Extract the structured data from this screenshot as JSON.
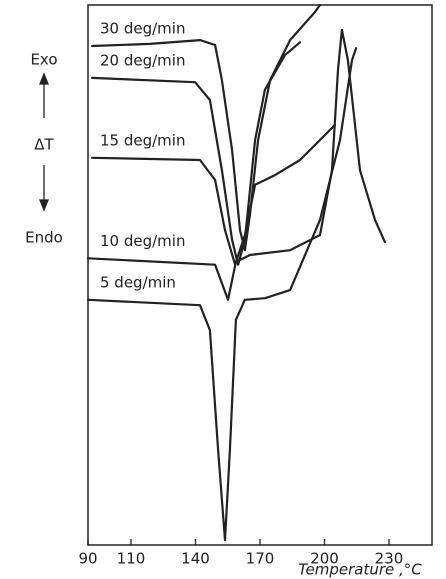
{
  "chart_data": {
    "type": "line",
    "xlabel": "Temperature ,°C",
    "annotations": [
      "Exo",
      "ΔT",
      "Endo"
    ],
    "xlim": [
      90,
      250
    ],
    "xticks": [
      90,
      110,
      140,
      170,
      200,
      230
    ],
    "ylim": [
      0,
      100
    ],
    "series": [
      {
        "name": "30 deg/min",
        "color": "#222222",
        "x": [
          91.9,
          118.8,
          142.1,
          149.1,
          152.3,
          157,
          160.7,
          163,
          165.3,
          169.1,
          174.7,
          184,
          195.6,
          197.9
        ],
        "values": [
          92.4,
          92.8,
          93.5,
          92.6,
          86.1,
          73.1,
          58.3,
          54.6,
          61.1,
          75,
          86.1,
          93.5,
          98.7,
          100
        ]
      },
      {
        "name": "20 deg/min",
        "color": "#222222",
        "x": [
          91.9,
          139.8,
          146.7,
          152.3,
          157,
          159.8,
          163,
          167.7,
          172.3,
          181.6,
          188.6
        ],
        "values": [
          86.5,
          85.7,
          82.4,
          69.4,
          56.5,
          51.9,
          56.5,
          75,
          84.3,
          90.7,
          93.1
        ]
      },
      {
        "name": "15 deg/min",
        "color": "#222222",
        "x": [
          91.9,
          142.1,
          149.1,
          153.7,
          158.4,
          163,
          167.7,
          177,
          188.6,
          197.9,
          204.9
        ],
        "values": [
          71.7,
          71.3,
          67.6,
          58.3,
          51.9,
          57.4,
          66.7,
          68.5,
          71.3,
          75,
          77.8
        ]
      },
      {
        "name": "10 deg/min",
        "color": "#222222",
        "x": [
          90,
          149.1,
          155.1,
          158.8,
          165.3,
          184,
          197.9,
          203.5,
          206.3,
          208.1,
          210.9,
          216.5,
          223.5,
          228.1
        ],
        "values": [
          53.1,
          51.9,
          45.4,
          52.4,
          53.7,
          54.6,
          57.4,
          69.4,
          88,
          95.4,
          89.8,
          69.4,
          60.2,
          56.1
        ]
      },
      {
        "name": "5 deg/min",
        "color": "#222222",
        "x": [
          90,
          142.1,
          146.7,
          150.5,
          153.7,
          156,
          158.8,
          163,
          172.3,
          184,
          197.9,
          207.2,
          212.8,
          214.7
        ],
        "values": [
          45.4,
          44.4,
          39.8,
          17.6,
          0.9,
          17.6,
          41.7,
          45.4,
          45.7,
          47.2,
          60.2,
          75,
          89.8,
          92
        ]
      }
    ]
  }
}
